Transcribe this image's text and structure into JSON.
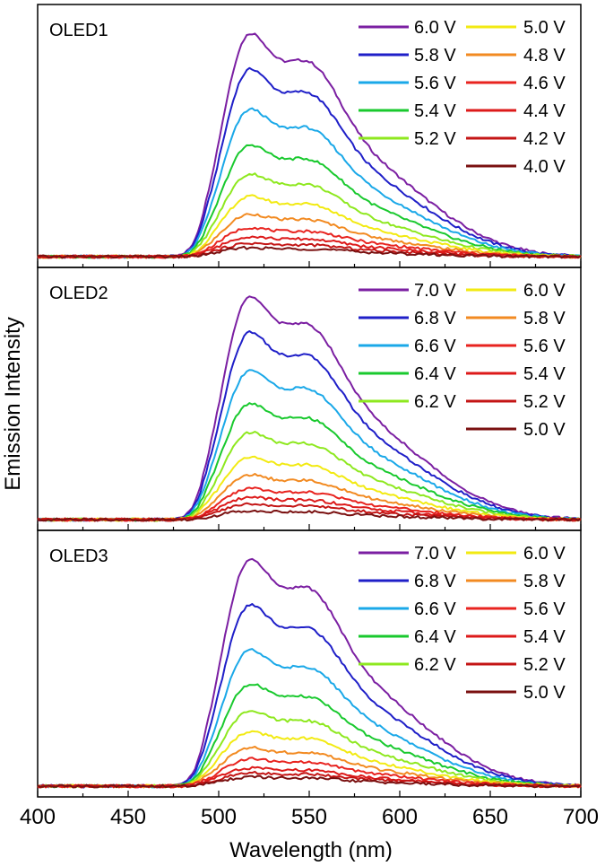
{
  "chart_data": {
    "type": "line",
    "xlabel": "Wavelength (nm)",
    "ylabel": "Emission Intensity",
    "xlim": [
      400,
      700
    ],
    "ylim": [
      0,
      1
    ],
    "x_ticks": [
      400,
      450,
      500,
      550,
      600,
      650,
      700
    ],
    "grid": false,
    "legend_placement": "top-right",
    "panels": [
      {
        "label": "OLED1",
        "series": [
          {
            "name": "6.0 V",
            "color": "#7b1fa2",
            "peak": 1.0
          },
          {
            "name": "5.8 V",
            "color": "#1f1fc8",
            "peak": 0.84
          },
          {
            "name": "5.6 V",
            "color": "#1aa8e8",
            "peak": 0.66
          },
          {
            "name": "5.4 V",
            "color": "#19c92e",
            "peak": 0.5
          },
          {
            "name": "5.2 V",
            "color": "#8ee81f",
            "peak": 0.37
          },
          {
            "name": "5.0 V",
            "color": "#f2ea12",
            "peak": 0.27
          },
          {
            "name": "4.8 V",
            "color": "#f28a21",
            "peak": 0.19
          },
          {
            "name": "4.6 V",
            "color": "#e8231f",
            "peak": 0.13
          },
          {
            "name": "4.4 V",
            "color": "#dd1a1a",
            "peak": 0.09
          },
          {
            "name": "4.2 V",
            "color": "#c41515",
            "peak": 0.06
          },
          {
            "name": "4.0 V",
            "color": "#7a1010",
            "peak": 0.04
          }
        ]
      },
      {
        "label": "OLED2",
        "series": [
          {
            "name": "7.0 V",
            "color": "#7b1fa2",
            "peak": 1.0
          },
          {
            "name": "6.8 V",
            "color": "#1f1fc8",
            "peak": 0.84
          },
          {
            "name": "6.6 V",
            "color": "#1aa8e8",
            "peak": 0.67
          },
          {
            "name": "6.4 V",
            "color": "#19c92e",
            "peak": 0.52
          },
          {
            "name": "6.2 V",
            "color": "#8ee81f",
            "peak": 0.39
          },
          {
            "name": "6.0 V",
            "color": "#f2ea12",
            "peak": 0.28
          },
          {
            "name": "5.8 V",
            "color": "#f28a21",
            "peak": 0.2
          },
          {
            "name": "5.6 V",
            "color": "#e8231f",
            "peak": 0.14
          },
          {
            "name": "5.4 V",
            "color": "#dd1a1a",
            "peak": 0.1
          },
          {
            "name": "5.2 V",
            "color": "#c41515",
            "peak": 0.07
          },
          {
            "name": "5.0 V",
            "color": "#7a1010",
            "peak": 0.04
          }
        ]
      },
      {
        "label": "OLED3",
        "series": [
          {
            "name": "7.0 V",
            "color": "#7b1fa2",
            "peak": 1.0
          },
          {
            "name": "6.8 V",
            "color": "#1f1fc8",
            "peak": 0.8
          },
          {
            "name": "6.6 V",
            "color": "#1aa8e8",
            "peak": 0.6
          },
          {
            "name": "6.4 V",
            "color": "#19c92e",
            "peak": 0.45
          },
          {
            "name": "6.2 V",
            "color": "#8ee81f",
            "peak": 0.33
          },
          {
            "name": "6.0 V",
            "color": "#f2ea12",
            "peak": 0.24
          },
          {
            "name": "5.8 V",
            "color": "#f28a21",
            "peak": 0.17
          },
          {
            "name": "5.6 V",
            "color": "#e8231f",
            "peak": 0.12
          },
          {
            "name": "5.4 V",
            "color": "#dd1a1a",
            "peak": 0.08
          },
          {
            "name": "5.2 V",
            "color": "#c41515",
            "peak": 0.06
          },
          {
            "name": "5.0 V",
            "color": "#7a1010",
            "peak": 0.04
          }
        ]
      }
    ]
  }
}
